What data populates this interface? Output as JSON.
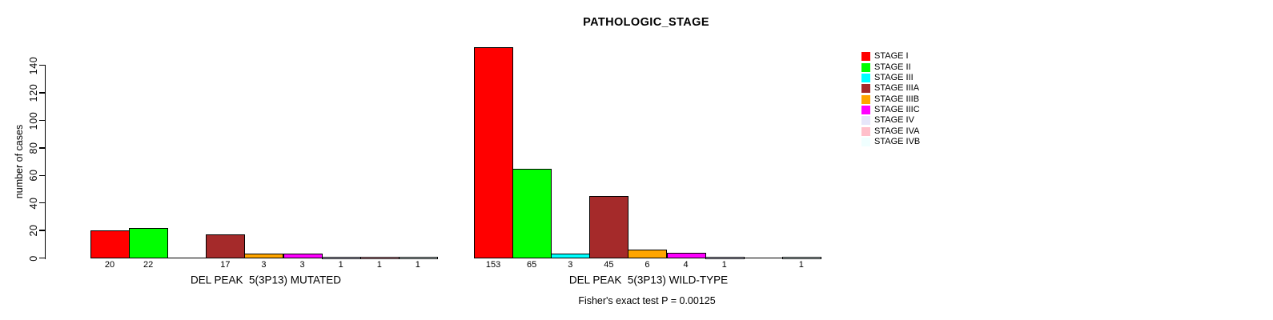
{
  "chart_data": {
    "type": "bar",
    "title": "PATHOLOGIC_STAGE",
    "ylabel": "number of cases",
    "xlabel": "",
    "ylim": [
      0,
      145
    ],
    "yticks": [
      0,
      20,
      40,
      60,
      80,
      100,
      120,
      140
    ],
    "grid": false,
    "legend_position": "right",
    "categories": [
      "STAGE I",
      "STAGE II",
      "STAGE III",
      "STAGE IIIA",
      "STAGE IIIB",
      "STAGE IIIC",
      "STAGE IV",
      "STAGE IVA",
      "STAGE IVB"
    ],
    "colors": [
      "#FF0000",
      "#00FF00",
      "#00FFFF",
      "#A52A2A",
      "#FFA500",
      "#FF00FF",
      "#E6E6FA",
      "#FFC0CB",
      "#F0FFFF"
    ],
    "series": [
      {
        "name": "DEL PEAK  5(3P13) MUTATED",
        "values": [
          20,
          22,
          0,
          17,
          3,
          3,
          1,
          1,
          1
        ]
      },
      {
        "name": "DEL PEAK  5(3P13) WILD-TYPE",
        "values": [
          153,
          65,
          3,
          45,
          6,
          4,
          1,
          0,
          1
        ]
      }
    ],
    "bar_value_labels_shown": true,
    "annotation": "Fisher's exact test P = 0.00125"
  }
}
